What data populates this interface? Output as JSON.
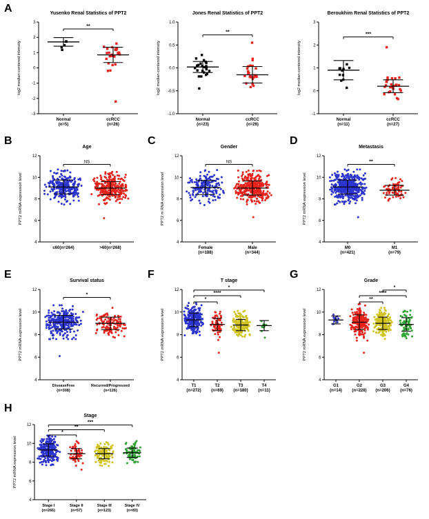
{
  "figure": {
    "panel_labels": {
      "A": "A",
      "B": "B",
      "C": "C",
      "D": "D",
      "E": "E",
      "F": "F",
      "G": "G",
      "H": "H"
    }
  },
  "colors": {
    "black": "#000000",
    "red": "#e8231c",
    "blue": "#2b33cf",
    "yellow": "#d0c31f",
    "green": "#2fa433"
  },
  "chart_data": [
    {
      "panel": "A",
      "type": "scatter",
      "title": "Yusenko Renal Statistics of PPT2",
      "ylabel": "log2 median-centered intensity",
      "ylim": [
        -3,
        3
      ],
      "yticks": [
        -3,
        -2,
        -1,
        0,
        1,
        2,
        3
      ],
      "ytick_labels": [
        "-3",
        "-2",
        "-1",
        "0",
        "1",
        "2",
        "3"
      ],
      "groups": [
        {
          "label_lines": [
            "Normal",
            "(n=5)"
          ],
          "n": 5,
          "mean": 1.7,
          "sd": 0.28,
          "color": "black",
          "marker": "square"
        },
        {
          "label_lines": [
            "ccRCC",
            "(n=26)"
          ],
          "n": 26,
          "mean": 0.85,
          "sd": 0.5,
          "color": "red",
          "marker": "square",
          "outliers": [
            -2.2
          ]
        }
      ],
      "significance": [
        {
          "a": 0,
          "b": 1,
          "y": 2.55,
          "label": "**"
        }
      ]
    },
    {
      "panel": "A",
      "type": "scatter",
      "title": "Jones Renal Statistics of PPT2",
      "ylabel": "log2 median-centered intensity",
      "ylim": [
        -1,
        1
      ],
      "yticks": [
        -1,
        -0.5,
        0,
        0.5,
        1
      ],
      "ytick_labels": [
        "-1.0",
        "-0.5",
        "0.0",
        "0.5",
        "1.0"
      ],
      "groups": [
        {
          "label_lines": [
            "Normal",
            "(n=23)"
          ],
          "n": 23,
          "mean": 0.02,
          "sd": 0.12,
          "color": "black",
          "marker": "square",
          "outliers": [
            -0.45
          ]
        },
        {
          "label_lines": [
            "ccRCC",
            "(n=26)"
          ],
          "n": 26,
          "mean": -0.15,
          "sd": 0.18,
          "color": "red",
          "marker": "square",
          "outliers": [
            0.55
          ]
        }
      ],
      "significance": [
        {
          "a": 0,
          "b": 1,
          "y": 0.72,
          "label": "**"
        }
      ]
    },
    {
      "panel": "A",
      "type": "scatter",
      "title": "Beroukhim Renal Statistics of PPT2",
      "ylabel": "log2 median-centered intensity",
      "ylim": [
        -1,
        3
      ],
      "yticks": [
        -1,
        0,
        1,
        2,
        3
      ],
      "ytick_labels": [
        "-1",
        "0",
        "1",
        "2",
        "3"
      ],
      "groups": [
        {
          "label_lines": [
            "Normal",
            "(n=11)"
          ],
          "n": 11,
          "mean": 0.9,
          "sd": 0.42,
          "color": "black",
          "marker": "square"
        },
        {
          "label_lines": [
            "ccRCC",
            "(n=27)"
          ],
          "n": 27,
          "mean": 0.2,
          "sd": 0.28,
          "color": "red",
          "marker": "square",
          "outliers": [
            1.9
          ]
        }
      ],
      "significance": [
        {
          "a": 0,
          "b": 1,
          "y": 2.35,
          "label": "***"
        }
      ]
    },
    {
      "panel": "B",
      "type": "scatter",
      "title": "Age",
      "ylabel": "PPT2 mRNA expression level",
      "ylim": [
        4,
        12
      ],
      "yticks": [
        4,
        6,
        8,
        10,
        12
      ],
      "ytick_labels": [
        "4",
        "6",
        "8",
        "10",
        "12"
      ],
      "groups": [
        {
          "label_lines": [
            "≤60(n=264)"
          ],
          "n": 264,
          "mean": 9.1,
          "sd": 0.65,
          "color": "blue",
          "marker": "circle"
        },
        {
          "label_lines": [
            ">60(n=268)"
          ],
          "n": 268,
          "mean": 9.0,
          "sd": 0.6,
          "color": "red",
          "marker": "circle",
          "outliers": [
            6.2
          ]
        }
      ],
      "significance": [
        {
          "a": 0,
          "b": 1,
          "y": 11.2,
          "label": "NS"
        }
      ]
    },
    {
      "panel": "C",
      "type": "scatter",
      "title": "Gender",
      "ylabel": "PPT2 m RNA expression level",
      "ylim": [
        4,
        12
      ],
      "yticks": [
        4,
        6,
        8,
        10,
        12
      ],
      "ytick_labels": [
        "4",
        "6",
        "8",
        "10",
        "12"
      ],
      "groups": [
        {
          "label_lines": [
            "Female",
            "(n=188)"
          ],
          "n": 188,
          "mean": 9.05,
          "sd": 0.65,
          "color": "blue",
          "marker": "circle"
        },
        {
          "label_lines": [
            "Male",
            "(n=344)"
          ],
          "n": 344,
          "mean": 9.0,
          "sd": 0.65,
          "color": "red",
          "marker": "circle",
          "outliers": [
            6.3
          ]
        }
      ],
      "significance": [
        {
          "a": 0,
          "b": 1,
          "y": 11.2,
          "label": "NS"
        }
      ]
    },
    {
      "panel": "D",
      "type": "scatter",
      "title": "Metastasis",
      "ylabel": "PPT2 mRNA expression level",
      "ylim": [
        4,
        12
      ],
      "yticks": [
        4,
        6,
        8,
        10,
        12
      ],
      "ytick_labels": [
        "4",
        "6",
        "8",
        "10",
        "12"
      ],
      "groups": [
        {
          "label_lines": [
            "M0",
            "(n=421)"
          ],
          "n": 421,
          "mean": 9.1,
          "sd": 0.65,
          "color": "blue",
          "marker": "circle",
          "outliers": [
            6.3
          ]
        },
        {
          "label_lines": [
            "M1",
            "(n=79)"
          ],
          "n": 79,
          "mean": 8.8,
          "sd": 0.45,
          "color": "red",
          "marker": "circle"
        }
      ],
      "significance": [
        {
          "a": 0,
          "b": 1,
          "y": 11.2,
          "label": "**"
        }
      ]
    },
    {
      "panel": "E",
      "type": "scatter",
      "title": "Survival status",
      "ylabel": "PPT2 mRNA expression level",
      "ylim": [
        4,
        12
      ],
      "yticks": [
        4,
        6,
        8,
        10,
        12
      ],
      "ytick_labels": [
        "4",
        "6",
        "8",
        "10",
        "12"
      ],
      "groups": [
        {
          "label_lines": [
            "DiseaseFree",
            "(n=308)"
          ],
          "n": 308,
          "mean": 9.1,
          "sd": 0.6,
          "color": "blue",
          "marker": "circle",
          "outliers": [
            6.1
          ]
        },
        {
          "label_lines": [
            "Recurred/Progressed",
            "(n=126)"
          ],
          "n": 126,
          "mean": 9.0,
          "sd": 0.55,
          "color": "red",
          "marker": "circle"
        }
      ],
      "significance": [
        {
          "a": 0,
          "b": 1,
          "y": 11.3,
          "label": "*"
        }
      ]
    },
    {
      "panel": "F",
      "type": "scatter",
      "title": "T stage",
      "ylabel": "PPT2 mRNA expression level",
      "ylim": [
        4,
        12
      ],
      "yticks": [
        4,
        6,
        8,
        10,
        12
      ],
      "ytick_labels": [
        "4",
        "6",
        "8",
        "10",
        "12"
      ],
      "groups": [
        {
          "label_lines": [
            "T1",
            "(n=272)"
          ],
          "n": 272,
          "mean": 9.3,
          "sd": 0.6,
          "color": "blue",
          "marker": "circle"
        },
        {
          "label_lines": [
            "T2",
            "(n=69)"
          ],
          "n": 69,
          "mean": 8.9,
          "sd": 0.55,
          "color": "red",
          "marker": "circle",
          "outliers": [
            6.4
          ]
        },
        {
          "label_lines": [
            "T3",
            "(n=180)"
          ],
          "n": 180,
          "mean": 8.85,
          "sd": 0.5,
          "color": "yellow",
          "marker": "circle"
        },
        {
          "label_lines": [
            "T4",
            "(n=11)"
          ],
          "n": 11,
          "mean": 8.8,
          "sd": 0.45,
          "color": "green",
          "marker": "circle"
        }
      ],
      "significance": [
        {
          "a": 0,
          "b": 1,
          "y": 10.9,
          "label": "*"
        },
        {
          "a": 0,
          "b": 2,
          "y": 11.45,
          "label": "****"
        },
        {
          "a": 0,
          "b": 3,
          "y": 11.95,
          "label": "*"
        }
      ]
    },
    {
      "panel": "G",
      "type": "scatter",
      "title": "Grade",
      "ylabel": "PPT2 mRNA expression level",
      "ylim": [
        4,
        12
      ],
      "yticks": [
        4,
        6,
        8,
        10,
        12
      ],
      "ytick_labels": [
        "4",
        "6",
        "8",
        "10",
        "12"
      ],
      "groups": [
        {
          "label_lines": [
            "G1",
            "(n=14)"
          ],
          "n": 14,
          "mean": 9.3,
          "sd": 0.35,
          "color": "blue",
          "marker": "circle"
        },
        {
          "label_lines": [
            "G2",
            "(n=228)"
          ],
          "n": 228,
          "mean": 9.1,
          "sd": 0.65,
          "color": "red",
          "marker": "circle",
          "outliers": [
            6.4
          ]
        },
        {
          "label_lines": [
            "G3",
            "(n=206)"
          ],
          "n": 206,
          "mean": 9.0,
          "sd": 0.55,
          "color": "yellow",
          "marker": "circle"
        },
        {
          "label_lines": [
            "G4",
            "(n=76)"
          ],
          "n": 76,
          "mean": 8.9,
          "sd": 0.6,
          "color": "green",
          "marker": "circle"
        }
      ],
      "significance": [
        {
          "a": 1,
          "b": 2,
          "y": 10.9,
          "label": "**"
        },
        {
          "a": 1,
          "b": 3,
          "y": 11.45,
          "label": "****"
        },
        {
          "a": 2,
          "b": 3,
          "y": 11.95,
          "label": "*"
        }
      ]
    },
    {
      "panel": "H",
      "type": "scatter",
      "title": "Stage",
      "ylabel": "PPT2 mRNA expression level",
      "ylim": [
        4,
        12
      ],
      "yticks": [
        4,
        6,
        8,
        10,
        12
      ],
      "ytick_labels": [
        "4",
        "6",
        "8",
        "10",
        "12"
      ],
      "groups": [
        {
          "label_lines": [
            "Stage I",
            "(n=266)"
          ],
          "n": 266,
          "mean": 9.3,
          "sd": 0.65,
          "color": "blue",
          "marker": "circle"
        },
        {
          "label_lines": [
            "Stage II",
            "(n=57)"
          ],
          "n": 57,
          "mean": 8.9,
          "sd": 0.55,
          "color": "red",
          "marker": "circle",
          "outliers": [
            7.2
          ]
        },
        {
          "label_lines": [
            "Stage III",
            "(n=123)"
          ],
          "n": 123,
          "mean": 8.9,
          "sd": 0.55,
          "color": "yellow",
          "marker": "circle"
        },
        {
          "label_lines": [
            "Stage IV",
            "(n=83)"
          ],
          "n": 83,
          "mean": 9.0,
          "sd": 0.5,
          "color": "green",
          "marker": "circle"
        }
      ],
      "significance": [
        {
          "a": 0,
          "b": 1,
          "y": 10.9,
          "label": "*"
        },
        {
          "a": 0,
          "b": 2,
          "y": 11.45,
          "label": "**"
        },
        {
          "a": 0,
          "b": 3,
          "y": 11.95,
          "label": "***"
        }
      ]
    }
  ]
}
